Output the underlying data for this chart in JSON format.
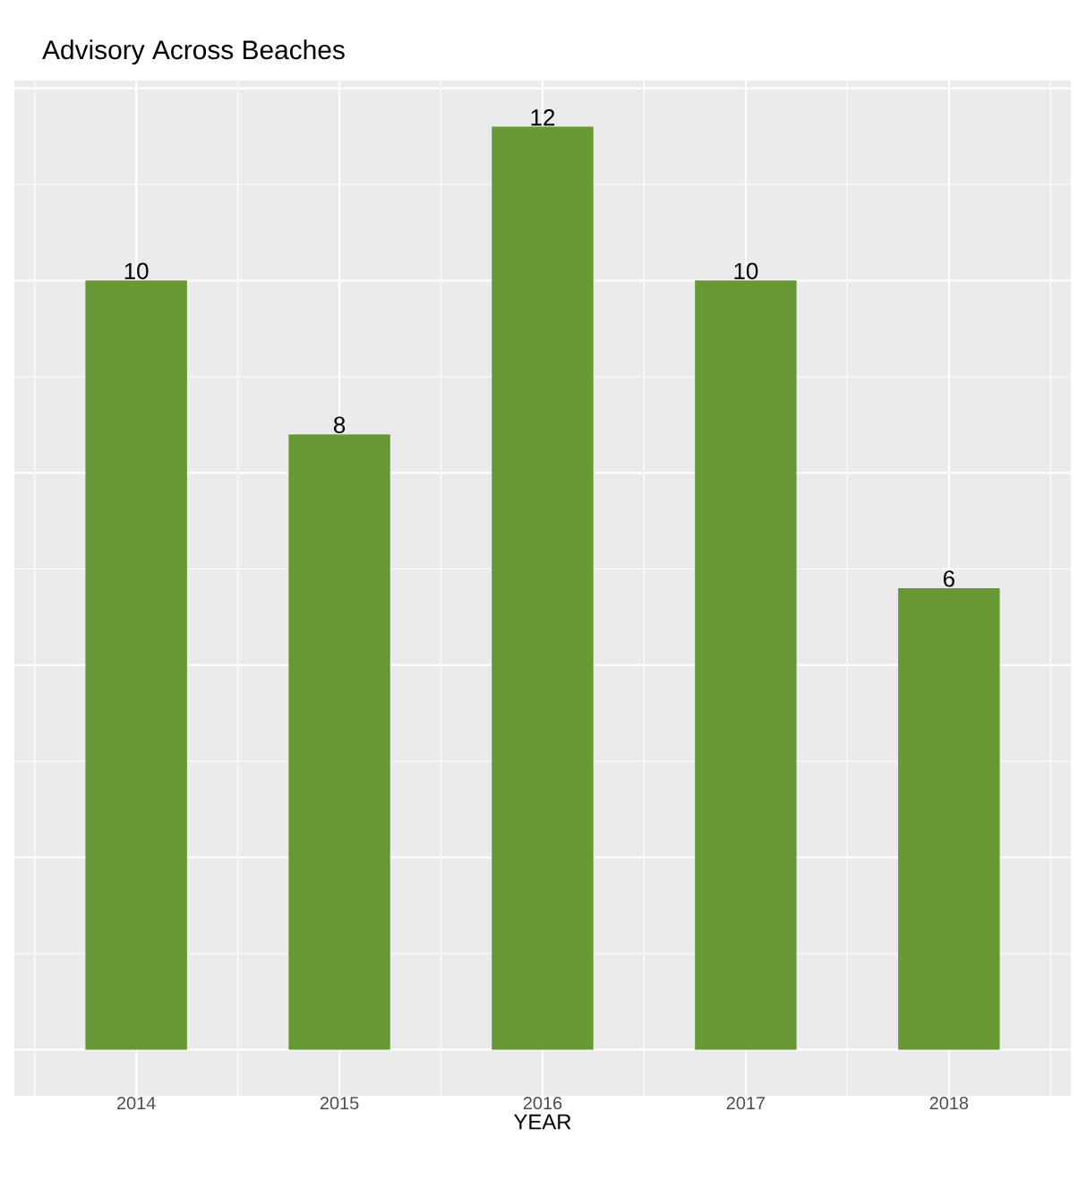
{
  "chart_data": {
    "type": "bar",
    "title": "Advisory Across Beaches",
    "xlabel": "YEAR",
    "categories": [
      "2014",
      "2015",
      "2016",
      "2017",
      "2018"
    ],
    "values": [
      10,
      8,
      12,
      10,
      6
    ],
    "color": "#679833",
    "ylim": [
      -0.6,
      12.6
    ],
    "yticks": [
      {
        "value": 0,
        "label": null
      },
      {
        "value": 2.5,
        "label": null
      },
      {
        "value": 5,
        "label": null
      },
      {
        "value": 7.5,
        "label": null
      },
      {
        "value": 10,
        "label": null
      },
      {
        "value": 12.5,
        "label": null
      }
    ],
    "tick_labels": "x",
    "grid": true,
    "data_labels": true
  }
}
